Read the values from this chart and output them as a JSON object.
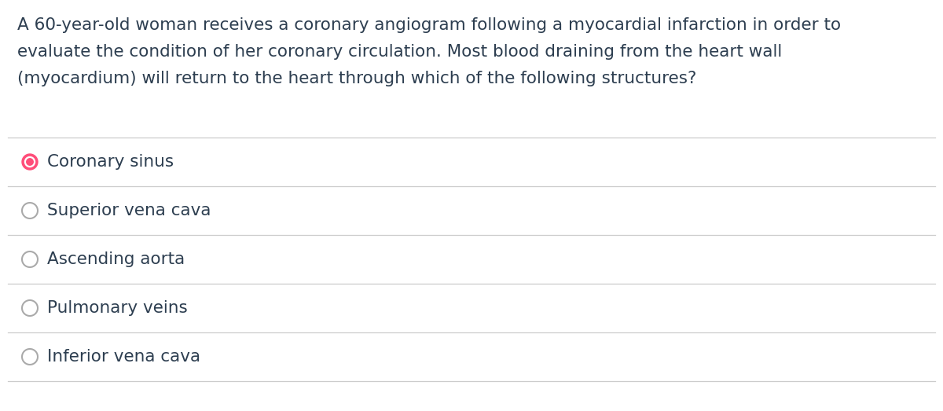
{
  "background_color": "#ffffff",
  "question_text_lines": [
    "A 60-year-old woman receives a coronary angiogram following a myocardial infarction in order to",
    "evaluate the condition of her coronary circulation. Most blood draining from the heart wall",
    "(myocardium) will return to the heart through which of the following structures?"
  ],
  "question_font_size": 15.5,
  "question_color": "#2d3e50",
  "options": [
    "Coronary sinus",
    "Superior vena cava",
    "Ascending aorta",
    "Pulmonary veins",
    "Inferior vena cava"
  ],
  "option_font_size": 15.5,
  "option_color": "#2d3e50",
  "selected_index": 0,
  "selected_fill_color": "#ff4d79",
  "selected_border_color": "#ff4d79",
  "unselected_fill_color": "#ffffff",
  "unselected_border_color": "#aaaaaa",
  "divider_color": "#cccccc",
  "fig_width": 12.0,
  "fig_height": 5.23,
  "dpi": 100
}
